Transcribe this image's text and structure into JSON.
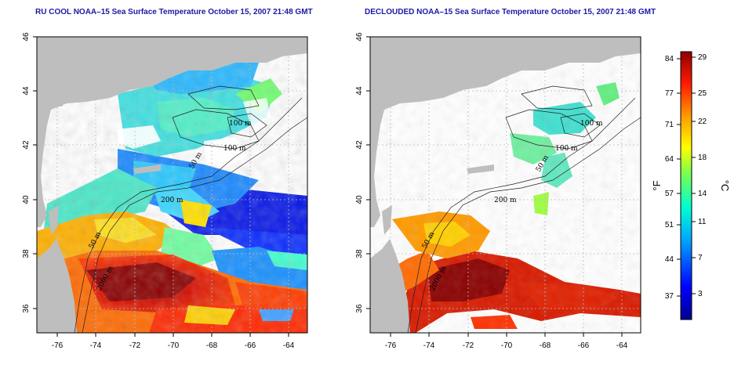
{
  "panels": [
    {
      "title": "RU COOL NOAA–15 Sea Surface Temperature October 15, 2007 21:48 GMT",
      "variant": "full",
      "contour_labels": [
        "100 m",
        "100 m",
        "50 m",
        "200 m",
        "50 m",
        "2000 m"
      ]
    },
    {
      "title": "DECLOUDED NOAA–15 Sea Surface Temperature October 15, 2007 21:48 GMT",
      "variant": "declouded",
      "contour_labels": [
        "100 m",
        "100 m",
        "50 m",
        "200 m",
        "50 m",
        "2000 m"
      ]
    }
  ],
  "axes": {
    "x_ticks": [
      "-76",
      "-74",
      "-72",
      "-70",
      "-68",
      "-66",
      "-64"
    ],
    "y_ticks": [
      "46",
      "44",
      "42",
      "40",
      "38",
      "36"
    ]
  },
  "colorbar": {
    "unit_left": "°F",
    "unit_right": "°C",
    "f_ticks": [
      "84",
      "77",
      "71",
      "64",
      "57",
      "51",
      "44",
      "37"
    ],
    "c_ticks": [
      "29",
      "25",
      "22",
      "18",
      "14",
      "11",
      "7",
      "3"
    ]
  },
  "colors": {
    "title": "#1a1aa6",
    "land": "#bebebe",
    "ocean_blank": "#ffffff"
  }
}
